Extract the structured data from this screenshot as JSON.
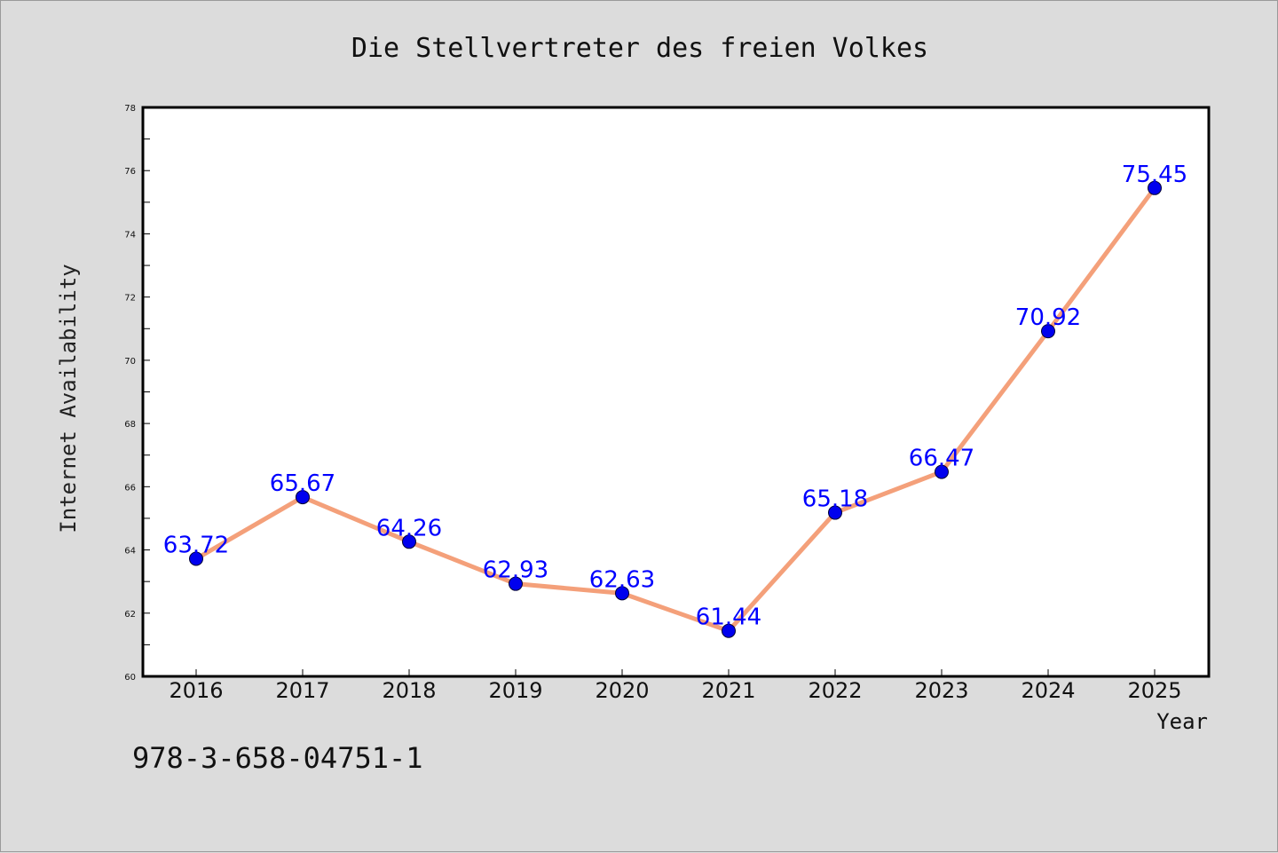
{
  "chart_data": {
    "type": "line",
    "title": "Die Stellvertreter des freien Volkes",
    "xlabel": "Year",
    "ylabel": "Internet Availability",
    "categories": [
      "2016",
      "2017",
      "2018",
      "2019",
      "2020",
      "2021",
      "2022",
      "2023",
      "2024",
      "2025"
    ],
    "series": [
      {
        "values": [
          63.72,
          65.67,
          64.26,
          62.93,
          62.63,
          61.44,
          65.18,
          66.47,
          70.92,
          75.45
        ],
        "labels": [
          "63.72",
          "65.67",
          "64.26",
          "62.93",
          "62.63",
          "61.44",
          "65.18",
          "66.47",
          "70.92",
          "75.45"
        ],
        "line_color": "#f4a07a",
        "marker_color": "#0000ee"
      }
    ],
    "ylim": [
      60,
      78
    ],
    "yticks": [
      "60",
      "62",
      "64",
      "66",
      "68",
      "70",
      "72",
      "74",
      "76",
      "78"
    ],
    "grid": false,
    "legend": "none"
  },
  "footer": {
    "text": "978-3-658-04751-1"
  }
}
